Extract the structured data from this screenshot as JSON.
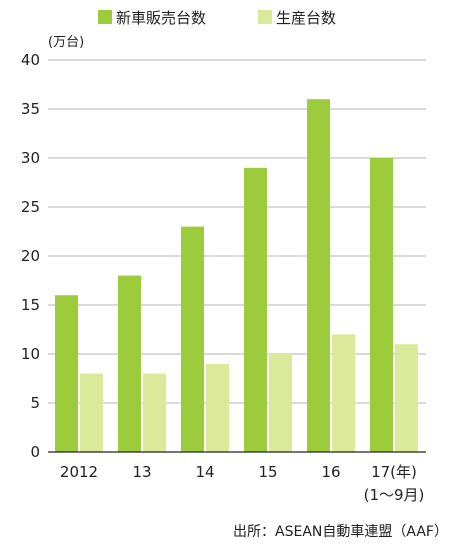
{
  "chart_data": {
    "type": "bar",
    "y_unit": "(万台)",
    "categories": [
      "2012",
      "13",
      "14",
      "15",
      "16",
      "17(年)"
    ],
    "category_sublabels": [
      "",
      "",
      "",
      "",
      "",
      "(1〜9月)"
    ],
    "series": [
      {
        "name": "新車販売台数",
        "values": [
          16,
          18,
          23,
          29,
          36,
          30
        ],
        "color": "#9ccb3b"
      },
      {
        "name": "生産台数",
        "values": [
          8,
          8,
          9,
          10,
          12,
          11
        ],
        "color": "#dbe99a"
      }
    ],
    "ylim": [
      0,
      40
    ],
    "yticks": [
      0,
      5,
      10,
      15,
      20,
      25,
      30,
      35,
      40
    ],
    "grid": true,
    "legend_position": "top",
    "source": "出所：ASEAN自動車連盟（AAF）"
  }
}
